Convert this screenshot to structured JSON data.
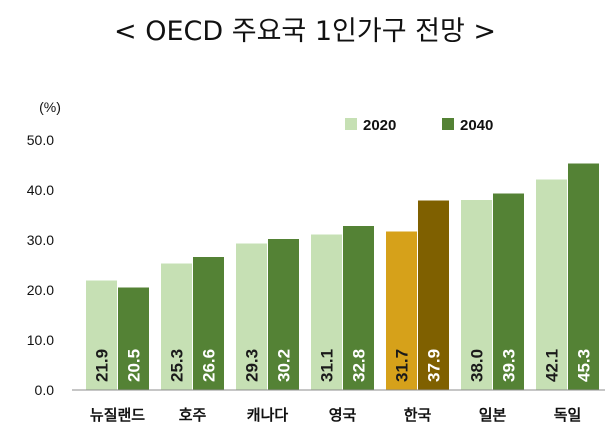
{
  "chart_data": {
    "type": "bar",
    "title": "< OECD 주요국 1인가구 전망 >",
    "unit": "(%)",
    "categories": [
      "뉴질랜드",
      "호주",
      "캐나다",
      "영국",
      "한국",
      "일본",
      "독일"
    ],
    "series": [
      {
        "name": "2020",
        "values": [
          21.9,
          25.3,
          29.3,
          31.1,
          31.7,
          38.0,
          42.1
        ]
      },
      {
        "name": "2040",
        "values": [
          20.5,
          26.6,
          30.2,
          32.8,
          37.9,
          39.3,
          45.3
        ]
      }
    ],
    "value_labels": [
      [
        "21.9",
        "25.3",
        "29.3",
        "31.1",
        "31.7",
        "38.0",
        "42.1"
      ],
      [
        "20.5",
        "26.6",
        "30.2",
        "32.8",
        "37.9",
        "39.3",
        "45.3"
      ]
    ],
    "ylim": [
      0,
      50
    ],
    "yticks": [
      "0.0",
      "10.0",
      "20.0",
      "30.0",
      "40.0",
      "50.0"
    ],
    "grid": false,
    "legend_position": "top-right",
    "colors": {
      "series_2020": "#c6e0b4",
      "series_2040": "#548235",
      "highlight_2020": "#d6a11a",
      "highlight_2040": "#7f6000",
      "label_on_light": "#1a1a1a",
      "label_on_dark": "#ffffff",
      "axis": "#8c8c8c"
    },
    "highlight_category": "한국"
  }
}
